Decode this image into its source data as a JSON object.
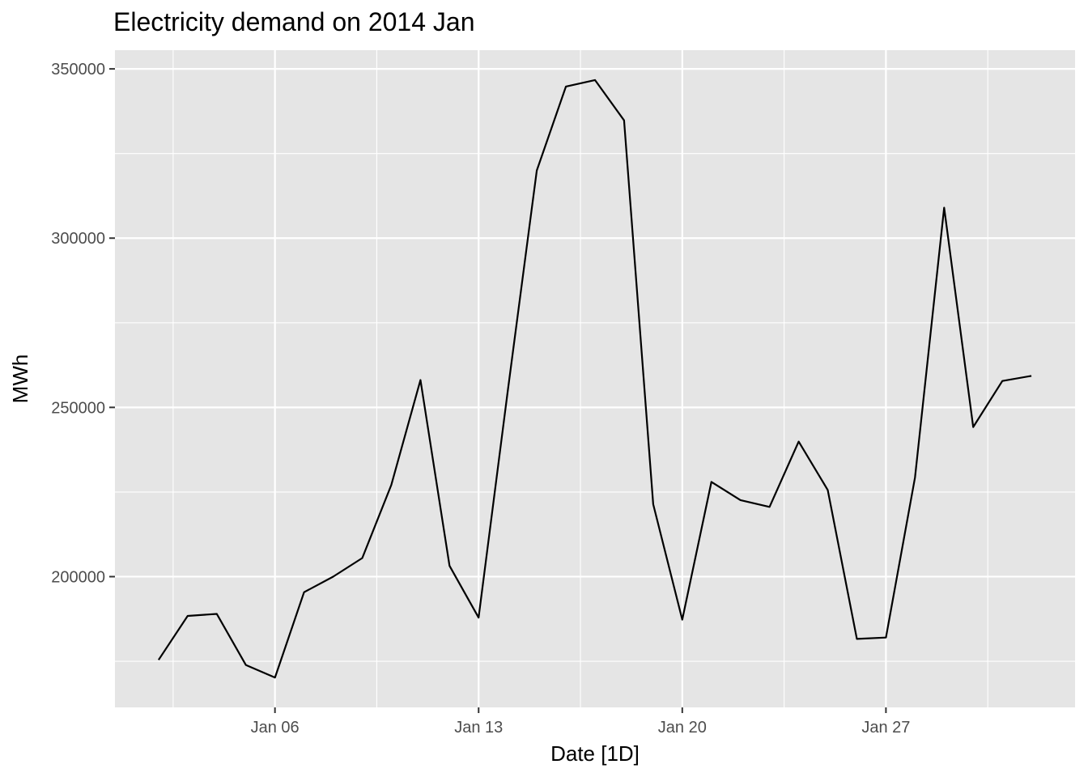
{
  "chart_data": {
    "type": "line",
    "title": "Electricity demand on 2014 Jan",
    "xlabel": "Date [1D]",
    "ylabel": "MWh",
    "x": [
      "2014-01-02",
      "2014-01-03",
      "2014-01-04",
      "2014-01-05",
      "2014-01-06",
      "2014-01-07",
      "2014-01-08",
      "2014-01-09",
      "2014-01-10",
      "2014-01-11",
      "2014-01-12",
      "2014-01-13",
      "2014-01-14",
      "2014-01-15",
      "2014-01-16",
      "2014-01-17",
      "2014-01-18",
      "2014-01-19",
      "2014-01-20",
      "2014-01-21",
      "2014-01-22",
      "2014-01-23",
      "2014-01-24",
      "2014-01-25",
      "2014-01-26",
      "2014-01-27",
      "2014-01-28",
      "2014-01-29",
      "2014-01-30",
      "2014-01-31",
      "2014-02-01"
    ],
    "series": [
      {
        "values": [
          175400,
          188400,
          189000,
          173900,
          170200,
          195400,
          200000,
          205500,
          227100,
          258100,
          203200,
          187900,
          254800,
          320000,
          344800,
          346700,
          334800,
          221400,
          187300,
          228000,
          222600,
          220600,
          239900,
          225600,
          181600,
          182000,
          229300,
          309000,
          244200,
          257800,
          259300
        ]
      }
    ],
    "x_ticks": [
      "Jan 06",
      "Jan 13",
      "Jan 20",
      "Jan 27"
    ],
    "x_tick_dates": [
      "2014-01-06",
      "2014-01-13",
      "2014-01-20",
      "2014-01-27"
    ],
    "y_ticks": [
      200000,
      250000,
      300000,
      350000
    ],
    "y_tick_labels": [
      "200000",
      "250000",
      "300000",
      "350000"
    ],
    "xlim": [
      "2014-01-02",
      "2014-02-01"
    ],
    "ylim": [
      170200,
      346700
    ],
    "grid": true,
    "colors": {
      "panel": "#e5e5e5",
      "grid": "#ffffff",
      "line": "#000000",
      "tick_text": "#4d4d4d"
    }
  }
}
